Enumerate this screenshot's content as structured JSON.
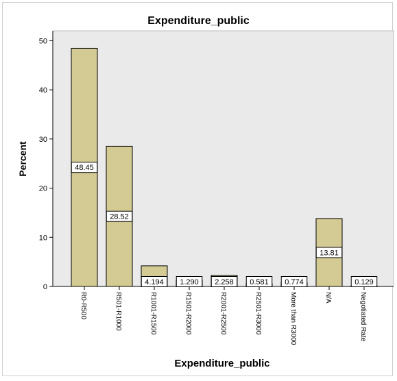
{
  "chart_data": {
    "type": "bar",
    "title": "Expenditure_public",
    "xlabel": "Expenditure_public",
    "ylabel": "Percent",
    "categories": [
      "R0-R500",
      "R501-R1000",
      "R1001-R1500",
      "R1501-R2000",
      "R2001-R2500",
      "R2501-R3000",
      "More than R3000",
      "N/A",
      "Negotiated Rate"
    ],
    "values": [
      48.45,
      28.52,
      4.194,
      1.29,
      2.258,
      0.581,
      0.774,
      13.81,
      0.129
    ],
    "data_labels": [
      "48.45",
      "28.52",
      "4.194",
      "1.290",
      "2.258",
      "0.581",
      "0.774",
      "13.81",
      "0.129"
    ],
    "yticks": [
      0,
      10,
      20,
      30,
      40,
      50
    ],
    "ylim": [
      0,
      52
    ],
    "grid": false,
    "colors": {
      "bar_fill": "#d4cb94",
      "bar_stroke": "#000000",
      "plot_bg": "#eaeaea"
    }
  }
}
